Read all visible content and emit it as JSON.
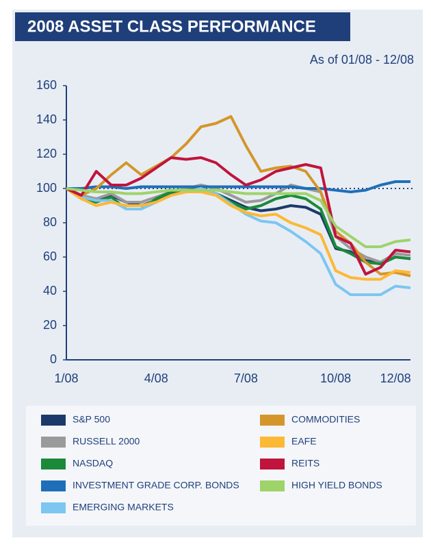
{
  "chart_data": {
    "type": "line",
    "title": "2008 ASSET CLASS PERFORMANCE",
    "subtitle": "As of 01/08 - 12/08",
    "categories": [
      "1/08",
      null,
      null,
      null,
      null,
      null,
      "4/08",
      null,
      null,
      null,
      null,
      null,
      "7/08",
      null,
      null,
      null,
      null,
      null,
      "10/08",
      null,
      null,
      null,
      "12/08",
      null
    ],
    "ylim": [
      0,
      160
    ],
    "yticks": [
      0,
      20,
      40,
      60,
      80,
      100,
      120,
      140,
      160
    ],
    "reference_line": 100,
    "series": [
      {
        "name": "S&P 500",
        "color": "#1b3a6b",
        "values": [
          100,
          95,
          93,
          96,
          92,
          90,
          93,
          97,
          99,
          100,
          97,
          93,
          89,
          87,
          88,
          90,
          89,
          85,
          65,
          63,
          58,
          56,
          60,
          59
        ]
      },
      {
        "name": "RUSSELL 2000",
        "color": "#9a9a9a",
        "values": [
          100,
          96,
          94,
          97,
          92,
          92,
          95,
          98,
          100,
          102,
          100,
          96,
          92,
          93,
          97,
          102,
          100,
          98,
          72,
          65,
          60,
          57,
          62,
          61
        ]
      },
      {
        "name": "NASDAQ",
        "color": "#1a8a3a",
        "values": [
          100,
          94,
          92,
          95,
          88,
          88,
          94,
          98,
          99,
          100,
          97,
          92,
          88,
          90,
          94,
          96,
          94,
          88,
          66,
          62,
          57,
          56,
          60,
          59
        ]
      },
      {
        "name": "INVESTMENT GRADE CORP. BONDS",
        "color": "#1f6fb8",
        "values": [
          100,
          100,
          101,
          101,
          100,
          101,
          101,
          101,
          101,
          101,
          101,
          101,
          101,
          101,
          101,
          101,
          100,
          100,
          99,
          98,
          99,
          102,
          104,
          104
        ]
      },
      {
        "name": "EMERGING MARKETS",
        "color": "#7cc6f0",
        "values": [
          100,
          95,
          93,
          93,
          88,
          88,
          92,
          96,
          98,
          100,
          97,
          91,
          85,
          81,
          80,
          75,
          69,
          62,
          44,
          38,
          38,
          38,
          43,
          42
        ]
      },
      {
        "name": "COMMODITIES",
        "color": "#d4962a",
        "values": [
          100,
          96,
          100,
          108,
          115,
          108,
          113,
          118,
          126,
          136,
          138,
          142,
          125,
          110,
          112,
          113,
          110,
          98,
          75,
          68,
          57,
          50,
          51,
          49
        ]
      },
      {
        "name": "EAFE",
        "color": "#fbb935",
        "values": [
          100,
          94,
          90,
          92,
          90,
          90,
          92,
          96,
          98,
          98,
          96,
          90,
          86,
          84,
          85,
          80,
          77,
          73,
          52,
          48,
          47,
          47,
          52,
          51
        ]
      },
      {
        "name": "REITS",
        "color": "#c0143c",
        "values": [
          100,
          96,
          110,
          102,
          102,
          106,
          112,
          118,
          117,
          118,
          115,
          108,
          102,
          105,
          110,
          112,
          114,
          112,
          72,
          68,
          50,
          54,
          64,
          63
        ]
      },
      {
        "name": "HIGH YIELD BONDS",
        "color": "#9ed36a",
        "values": [
          100,
          99,
          98,
          98,
          97,
          97,
          98,
          99,
          99,
          99,
          99,
          98,
          97,
          97,
          97,
          97,
          97,
          93,
          78,
          72,
          66,
          66,
          69,
          70
        ]
      }
    ]
  }
}
